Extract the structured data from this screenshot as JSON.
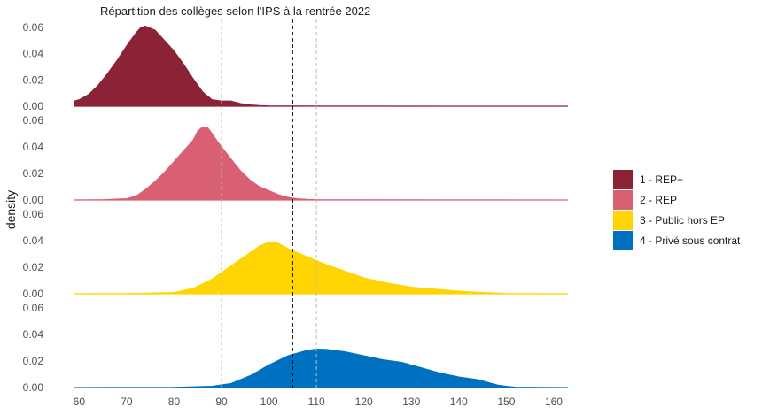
{
  "chart_data": {
    "type": "area",
    "title": "Répartition des collèges selon l'IPS à la rentrée 2022",
    "xlabel": "",
    "ylabel": "density",
    "xlim": [
      59,
      163
    ],
    "ylim": [
      0,
      0.06
    ],
    "x_ticks": [
      "60",
      "70",
      "80",
      "90",
      "100",
      "110",
      "120",
      "130",
      "140",
      "150",
      "160"
    ],
    "y_ticks": [
      "0.00",
      "0.02",
      "0.04",
      "0.06"
    ],
    "grid": false,
    "legend_position": "right",
    "reference_lines": [
      {
        "x": 90,
        "style": "dashed",
        "color": "#bbbbbb"
      },
      {
        "x": 105,
        "style": "dashed",
        "color": "#000000"
      },
      {
        "x": 110,
        "style": "dashed",
        "color": "#bbbbbb"
      }
    ],
    "series": [
      {
        "name": "1 - REP+",
        "color": "#8b2236",
        "x": [
          59,
          60,
          62,
          64,
          66,
          68,
          70,
          72,
          73,
          74,
          76,
          78,
          80,
          82,
          84,
          86,
          88,
          90,
          92,
          94,
          96,
          98,
          100,
          105,
          110,
          120,
          163
        ],
        "y": [
          0.004,
          0.005,
          0.009,
          0.016,
          0.025,
          0.035,
          0.046,
          0.056,
          0.06,
          0.061,
          0.058,
          0.05,
          0.042,
          0.032,
          0.021,
          0.011,
          0.005,
          0.004,
          0.004,
          0.002,
          0.001,
          0.0005,
          0.0003,
          0.0002,
          0.0001,
          0.0001,
          0.0
        ]
      },
      {
        "name": "2 - REP",
        "color": "#d95f72",
        "x": [
          59,
          65,
          70,
          72,
          74,
          76,
          78,
          80,
          82,
          84,
          85,
          86,
          87,
          88,
          90,
          92,
          94,
          96,
          98,
          100,
          102,
          104,
          106,
          108,
          110,
          115,
          120,
          163
        ],
        "y": [
          0.0,
          0.0003,
          0.001,
          0.003,
          0.008,
          0.014,
          0.021,
          0.029,
          0.037,
          0.045,
          0.052,
          0.055,
          0.055,
          0.05,
          0.04,
          0.031,
          0.022,
          0.015,
          0.01,
          0.007,
          0.004,
          0.002,
          0.001,
          0.0005,
          0.0003,
          0.0002,
          0.0001,
          0.0
        ]
      },
      {
        "name": "3 - Public hors EP",
        "color": "#ffd400",
        "x": [
          59,
          70,
          80,
          84,
          88,
          92,
          96,
          98,
          100,
          102,
          104,
          108,
          112,
          116,
          120,
          125,
          130,
          135,
          140,
          145,
          150,
          163
        ],
        "y": [
          0.0,
          0.0002,
          0.001,
          0.004,
          0.011,
          0.021,
          0.031,
          0.036,
          0.039,
          0.038,
          0.034,
          0.028,
          0.022,
          0.017,
          0.012,
          0.008,
          0.005,
          0.0035,
          0.002,
          0.001,
          0.0003,
          0.0
        ]
      },
      {
        "name": "4 - Privé sous contrat",
        "color": "#0070c0",
        "x": [
          59,
          80,
          88,
          92,
          96,
          100,
          104,
          108,
          110,
          112,
          116,
          120,
          124,
          128,
          132,
          136,
          140,
          144,
          146,
          148,
          150,
          152,
          163
        ],
        "y": [
          0.0,
          0.0002,
          0.001,
          0.003,
          0.009,
          0.017,
          0.024,
          0.028,
          0.029,
          0.0288,
          0.027,
          0.024,
          0.021,
          0.019,
          0.015,
          0.011,
          0.008,
          0.006,
          0.004,
          0.002,
          0.001,
          0.0003,
          0.0
        ]
      }
    ]
  }
}
